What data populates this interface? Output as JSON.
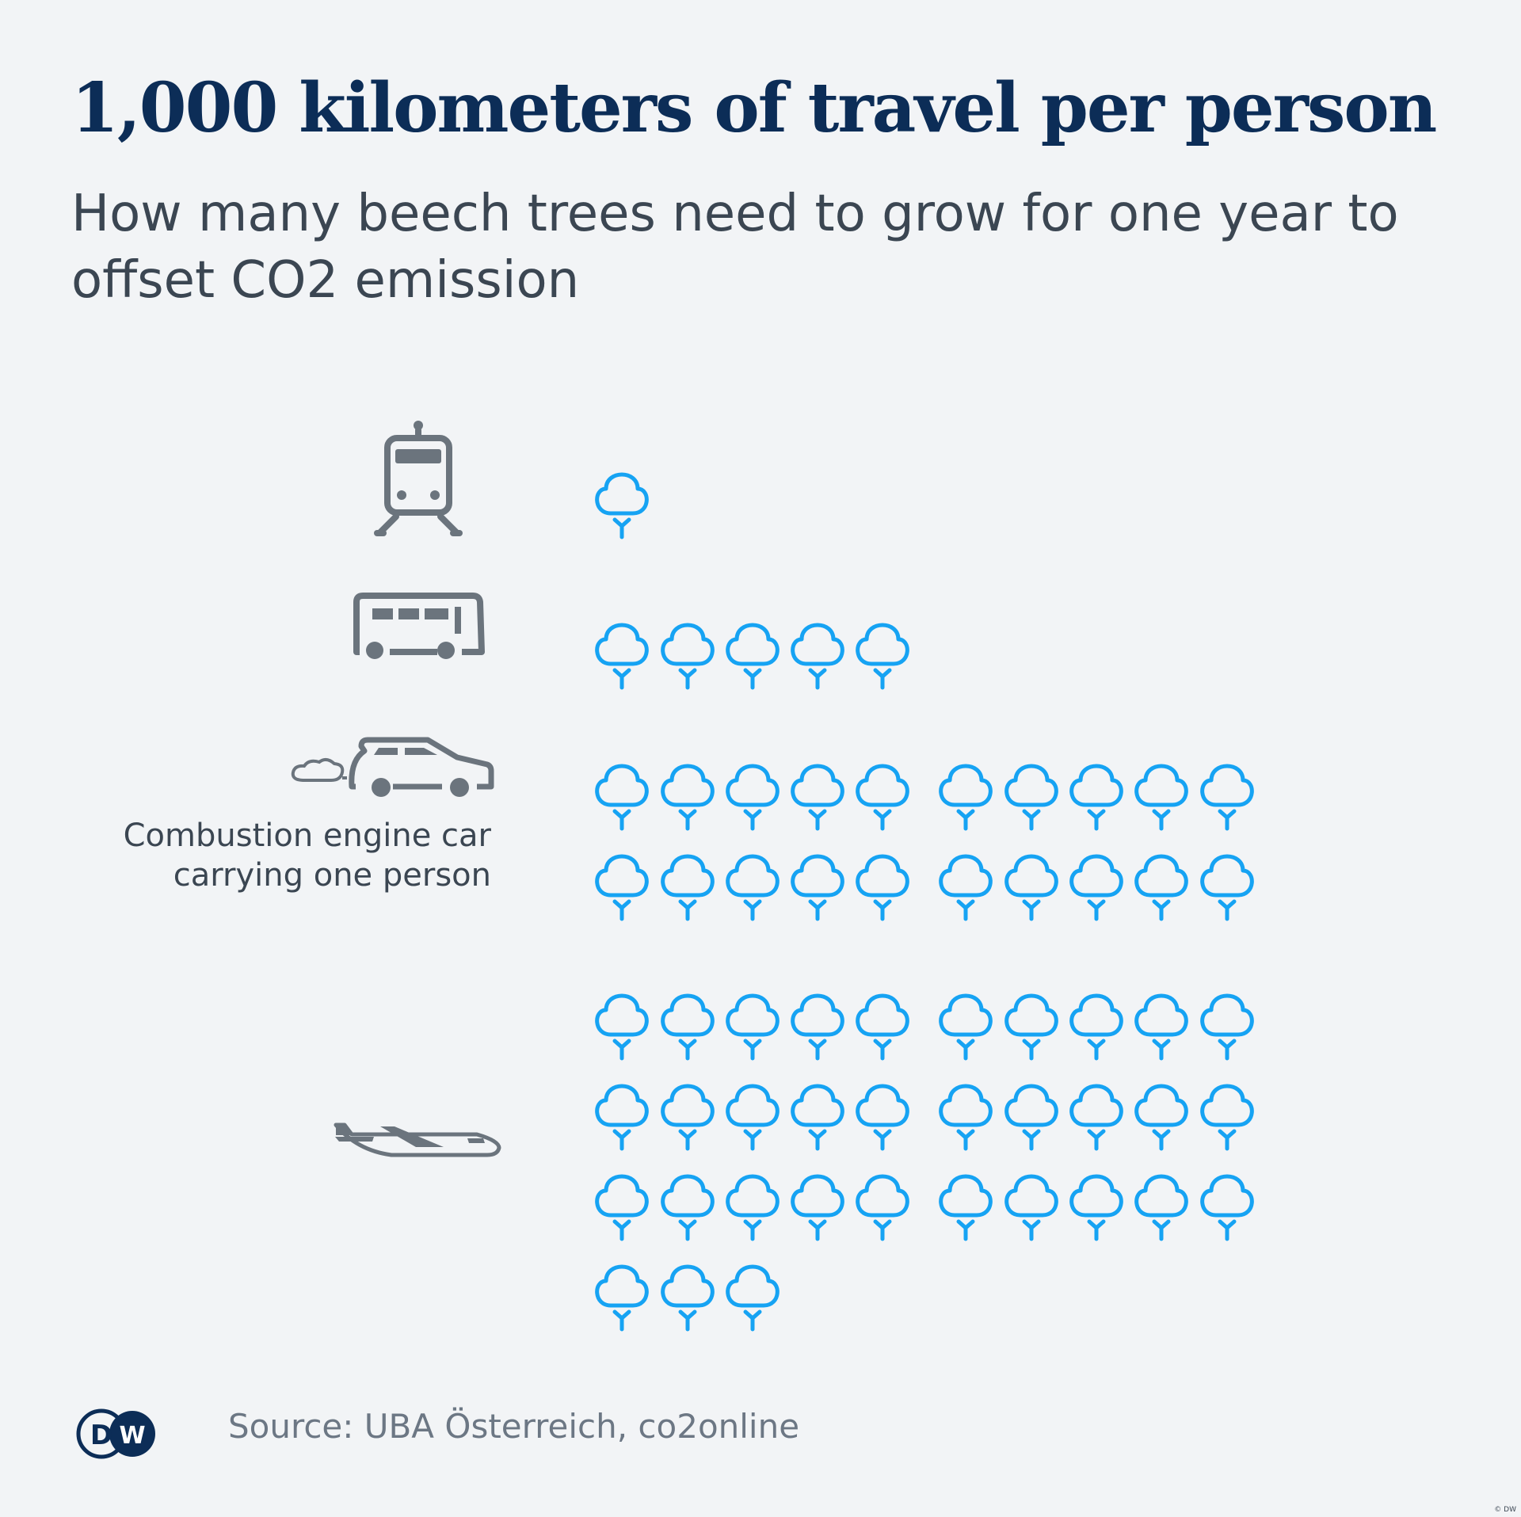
{
  "title": "1,000 kilometers of travel per person",
  "subtitle": "How many beech trees need to grow for one year to offset CO2 emission",
  "source": "Source: UBA Österreich, co2online",
  "copyright": "© DW",
  "logo_text": "DW",
  "colors": {
    "background": "#f2f4f6",
    "title": "#0c2d57",
    "subtitle": "#3b4652",
    "tree": "#16a3f3",
    "icon": "#6b747d",
    "source": "#6c7784",
    "logo": "#0c2d57"
  },
  "chart_data": {
    "type": "pictogram",
    "unit_icon": "beech-tree-icon",
    "title": "1,000 kilometers of travel per person",
    "subtitle": "How many beech trees need to grow for one year to offset CO2 emission",
    "categories": [
      {
        "key": "train",
        "icon": "train-icon",
        "label": "",
        "value": 1
      },
      {
        "key": "bus",
        "icon": "bus-icon",
        "label": "",
        "value": 5
      },
      {
        "key": "car",
        "icon": "car-icon",
        "label": "Combustion engine car carrying one person",
        "value": 20
      },
      {
        "key": "plane",
        "icon": "plane-icon",
        "label": "",
        "value": 33
      }
    ]
  }
}
